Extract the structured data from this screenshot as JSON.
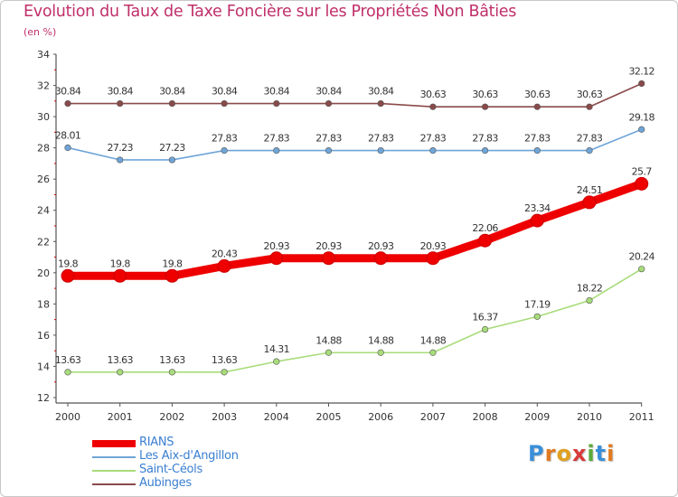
{
  "header": {
    "title": "Evolution du Taux de Taxe Foncière sur les Propriétés Non Bâties",
    "subtitle": "(en %)"
  },
  "brand": {
    "letters": [
      "P",
      "r",
      "o",
      "x",
      "i",
      "t",
      "i"
    ],
    "colors": [
      "#3a8fd8",
      "#e07a20",
      "#e0a020",
      "#d83a3a",
      "#5aaa3a",
      "#3a8fd8",
      "#e07a20"
    ]
  },
  "chart_data": {
    "type": "line",
    "title": "Evolution du Taux de Taxe Foncière sur les Propriétés Non Bâties",
    "ylabel": "(en %)",
    "xlabel": "",
    "ylim": [
      12,
      34
    ],
    "yticks": [
      12,
      14,
      16,
      18,
      20,
      22,
      24,
      26,
      28,
      30,
      32,
      34
    ],
    "categories": [
      "2000",
      "2001",
      "2002",
      "2003",
      "2004",
      "2005",
      "2006",
      "2007",
      "2008",
      "2009",
      "2010",
      "2011"
    ],
    "grid": false,
    "legend_position": "bottom-left",
    "series": [
      {
        "name": "RIANS",
        "color": "#ee0000",
        "emphasis": true,
        "values": [
          19.8,
          19.8,
          19.8,
          20.43,
          20.93,
          20.93,
          20.93,
          20.93,
          22.06,
          23.34,
          24.51,
          25.7
        ],
        "labels": [
          "19.8",
          "19.8",
          "19.8",
          "20.43",
          "20.93",
          "20.93",
          "20.93",
          "20.93",
          "22.06",
          "23.34",
          "24.51",
          "25.7"
        ]
      },
      {
        "name": "Les Aix-d'Angillon",
        "color": "#6fa5d8",
        "emphasis": false,
        "values": [
          28.01,
          27.23,
          27.23,
          27.83,
          27.83,
          27.83,
          27.83,
          27.83,
          27.83,
          27.83,
          27.83,
          29.18
        ],
        "labels": [
          "28.01",
          "27.23",
          "27.23",
          "27.83",
          "27.83",
          "27.83",
          "27.83",
          "27.83",
          "27.83",
          "27.83",
          "27.83",
          "29.18"
        ]
      },
      {
        "name": "Saint-Céols",
        "color": "#a8dc7a",
        "emphasis": false,
        "values": [
          13.63,
          13.63,
          13.63,
          13.63,
          14.31,
          14.88,
          14.88,
          14.88,
          16.37,
          17.19,
          18.22,
          20.24
        ],
        "labels": [
          "13.63",
          "13.63",
          "13.63",
          "13.63",
          "14.31",
          "14.88",
          "14.88",
          "14.88",
          "16.37",
          "17.19",
          "18.22",
          "20.24"
        ]
      },
      {
        "name": "Aubinges",
        "color": "#8a4a4a",
        "emphasis": false,
        "values": [
          30.84,
          30.84,
          30.84,
          30.84,
          30.84,
          30.84,
          30.84,
          30.63,
          30.63,
          30.63,
          30.63,
          32.12
        ],
        "labels": [
          "30.84",
          "30.84",
          "30.84",
          "30.84",
          "30.84",
          "30.84",
          "30.84",
          "30.63",
          "30.63",
          "30.63",
          "30.63",
          "32.12"
        ]
      }
    ]
  }
}
